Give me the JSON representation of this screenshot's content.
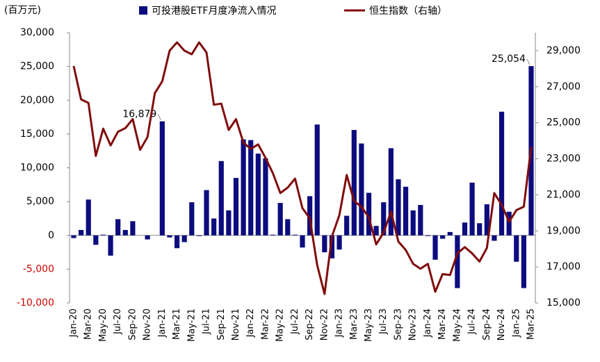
{
  "chart_data": {
    "type": "bar-line",
    "y_axis_label": "(百万元)",
    "categories": [
      "Jan-20",
      null,
      "Mar-20",
      null,
      "May-20",
      null,
      "Jul-20",
      null,
      "Sep-20",
      null,
      "Nov-20",
      null,
      "Jan-21",
      null,
      "Mar-21",
      null,
      "May-21",
      null,
      "Jul-21",
      null,
      "Sep-21",
      null,
      "Nov-21",
      null,
      "Jan-22",
      null,
      "Mar-22",
      null,
      "May-22",
      null,
      "Jul-22",
      null,
      "Sep-22",
      null,
      "Nov-22",
      null,
      "Jan-23",
      null,
      "Mar-23",
      null,
      "May-23",
      null,
      "Jul-23",
      null,
      "Sep-23",
      null,
      "Nov-23",
      null,
      "Jan-24",
      null,
      "Mar-24",
      null,
      "May-24",
      null,
      "Jul-24",
      null,
      "Sep-24",
      null,
      "Nov-24",
      null,
      "Jan-25",
      null,
      "Mar-25"
    ],
    "series": [
      {
        "name": "可投港股ETF月度净流入情况",
        "type": "bar",
        "color": "#0c0c7e",
        "values": [
          -400,
          800,
          5300,
          -1400,
          100,
          -3000,
          2400,
          800,
          2100,
          0,
          -600,
          0,
          16879,
          -300,
          -1900,
          -1000,
          4900,
          -100,
          6700,
          2500,
          11000,
          3700,
          8500,
          14200,
          14100,
          12100,
          11400,
          100,
          4800,
          2400,
          100,
          -1800,
          5800,
          16400,
          -2500,
          -3400,
          -2100,
          2900,
          15600,
          13600,
          6300,
          1400,
          4900,
          12900,
          8300,
          7200,
          3700,
          4500,
          -100,
          -3600,
          -500,
          500,
          -7800,
          1900,
          7800,
          1800,
          4600,
          -800,
          18300,
          3500,
          -3900,
          -7800,
          25054
        ],
        "value_labels": [
          null,
          null,
          null,
          null,
          null,
          null,
          null,
          null,
          null,
          null,
          null,
          null,
          "16,879",
          null,
          null,
          null,
          null,
          null,
          null,
          null,
          null,
          null,
          null,
          null,
          null,
          null,
          null,
          null,
          null,
          null,
          null,
          null,
          null,
          null,
          null,
          null,
          null,
          null,
          null,
          null,
          null,
          null,
          null,
          null,
          null,
          null,
          null,
          null,
          null,
          null,
          null,
          null,
          null,
          null,
          null,
          null,
          null,
          null,
          null,
          null,
          null,
          null,
          "25,054"
        ]
      },
      {
        "name": "恒生指数（右轴）",
        "type": "line",
        "axis": "y2",
        "color": "#7f0c0c",
        "values": [
          28150,
          26300,
          26100,
          23160,
          24670,
          23740,
          24500,
          24700,
          25200,
          23500,
          24200,
          26640,
          27300,
          29000,
          29460,
          29000,
          28800,
          29460,
          28900,
          26000,
          26060,
          24600,
          25200,
          23900,
          23550,
          23800,
          23050,
          22200,
          21100,
          21400,
          21900,
          20260,
          19700,
          17100,
          15500,
          18700,
          19870,
          22100,
          20650,
          20340,
          19750,
          18250,
          18900,
          20060,
          18400,
          17940,
          17170,
          16900,
          17170,
          15620,
          16600,
          16550,
          17750,
          18100,
          17750,
          17300,
          18050,
          21100,
          20450,
          19500,
          20150,
          20340,
          23660
        ]
      }
    ],
    "ylim": [
      -10000,
      30000
    ],
    "yticks": [
      {
        "value": -10000,
        "label": "-10,000"
      },
      {
        "value": -5000,
        "label": "-5,000"
      },
      0,
      {
        "value": 5000,
        "label": "5,000"
      },
      {
        "value": 10000,
        "label": "10,000"
      },
      {
        "value": 15000,
        "label": "15,000"
      },
      {
        "value": 20000,
        "label": "20,000"
      },
      {
        "value": 25000,
        "label": "25,000"
      },
      {
        "value": 30000,
        "label": "30,000"
      }
    ],
    "y2lim": [
      15000,
      30000
    ],
    "y2ticks": [
      {
        "value": 15000,
        "label": "15,000"
      },
      {
        "value": 17000,
        "label": "17,000"
      },
      {
        "value": 19000,
        "label": "19,000"
      },
      {
        "value": 21000,
        "label": "21,000"
      },
      {
        "value": 23000,
        "label": "23,000"
      },
      {
        "value": 25000,
        "label": "25,000"
      },
      {
        "value": 27000,
        "label": "27,000"
      },
      {
        "value": 29000,
        "label": "29,000"
      }
    ],
    "grid": false,
    "legend": "top"
  }
}
